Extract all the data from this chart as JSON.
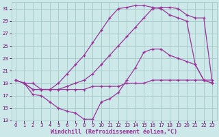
{
  "background_color": "#cce8e8",
  "grid_color": "#aacccc",
  "line_color": "#993399",
  "xlabel": "Windchill (Refroidissement éolien,°C)",
  "xlabel_color": "#993399",
  "tick_color": "#660066",
  "xlim": [
    -0.5,
    23.5
  ],
  "ylim": [
    13,
    32
  ],
  "yticks": [
    13,
    15,
    17,
    19,
    21,
    23,
    25,
    27,
    29,
    31
  ],
  "xticks": [
    0,
    1,
    2,
    3,
    4,
    5,
    6,
    7,
    8,
    9,
    10,
    11,
    12,
    13,
    14,
    15,
    16,
    17,
    18,
    19,
    20,
    21,
    22,
    23
  ],
  "curve_flat_x": [
    0,
    1,
    2,
    3,
    4,
    5,
    6,
    7,
    8,
    9,
    10,
    11,
    12,
    13,
    14,
    15,
    16,
    17,
    18,
    19,
    20,
    21,
    22,
    23
  ],
  "curve_flat_y": [
    19.5,
    19.0,
    19.0,
    18.0,
    18.0,
    18.0,
    18.0,
    18.0,
    18.0,
    18.5,
    18.5,
    18.5,
    18.5,
    19.0,
    19.0,
    19.0,
    19.5,
    19.5,
    19.5,
    19.5,
    19.5,
    19.5,
    19.5,
    19.5
  ],
  "curve_dip_x": [
    0,
    1,
    2,
    3,
    4,
    5,
    6,
    7,
    8,
    9,
    10,
    11,
    12,
    13,
    14,
    15,
    16,
    17,
    18,
    19,
    20,
    21,
    22,
    23
  ],
  "curve_dip_y": [
    19.5,
    19.0,
    17.2,
    17.0,
    16.0,
    15.0,
    14.5,
    14.2,
    13.2,
    13.2,
    16.0,
    16.5,
    17.5,
    19.5,
    21.5,
    24.0,
    24.5,
    24.5,
    23.5,
    23.0,
    22.5,
    22.0,
    19.5,
    19.0
  ],
  "curve_mid_x": [
    0,
    1,
    2,
    3,
    4,
    5,
    6,
    7,
    8,
    9,
    10,
    11,
    12,
    13,
    14,
    15,
    16,
    17,
    18,
    19,
    20,
    21,
    22,
    23
  ],
  "curve_mid_y": [
    19.5,
    19.0,
    18.0,
    18.0,
    18.0,
    18.0,
    18.5,
    19.0,
    19.5,
    20.5,
    22.0,
    23.5,
    25.0,
    26.5,
    28.0,
    29.5,
    31.0,
    31.2,
    31.2,
    31.0,
    30.0,
    29.5,
    29.5,
    19.0
  ],
  "curve_top_x": [
    0,
    1,
    2,
    3,
    4,
    5,
    6,
    7,
    8,
    9,
    10,
    11,
    12,
    13,
    14,
    15,
    16,
    17,
    18,
    19,
    20,
    21,
    22,
    23
  ],
  "curve_top_y": [
    19.5,
    19.0,
    18.0,
    18.0,
    18.0,
    19.0,
    20.5,
    22.0,
    23.5,
    25.5,
    27.5,
    29.5,
    31.0,
    31.2,
    31.5,
    31.5,
    31.2,
    31.0,
    30.0,
    29.5,
    29.0,
    22.0,
    19.5,
    19.0
  ]
}
